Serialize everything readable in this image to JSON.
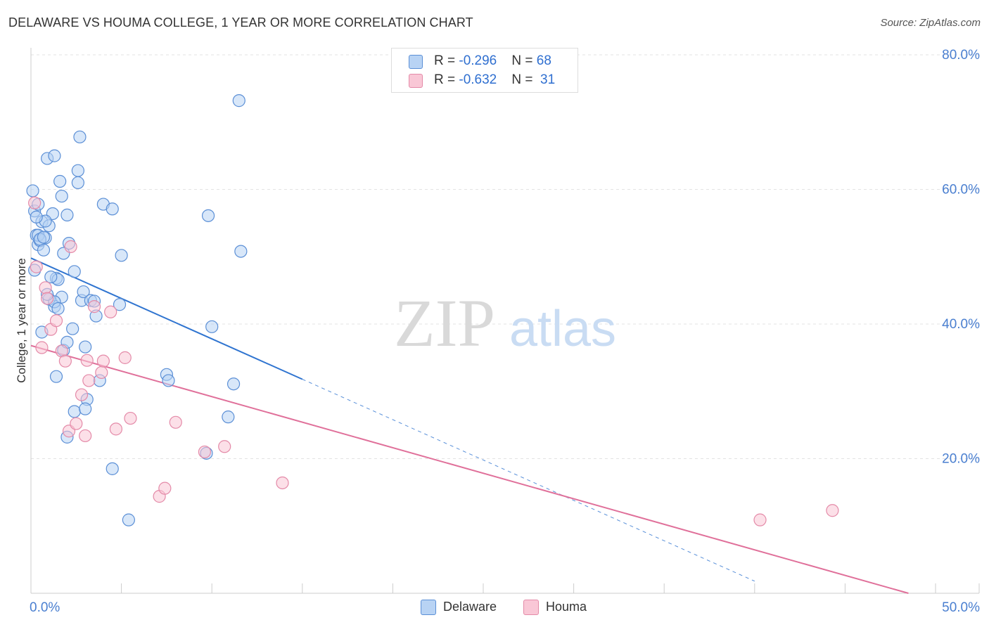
{
  "title": "DELAWARE VS HOUMA COLLEGE, 1 YEAR OR MORE CORRELATION CHART",
  "source": "Source: ZipAtlas.com",
  "watermark": {
    "zip": "ZIP",
    "atlas": "atlas"
  },
  "legend": {
    "rows": [
      {
        "r_label": "R = ",
        "r_value": "-0.296",
        "n_label": "N = ",
        "n_value": "68"
      },
      {
        "r_label": "R = ",
        "r_value": "-0.632",
        "n_label": "N = ",
        "n_value": " 31"
      }
    ]
  },
  "colors": {
    "delaware_fill": "#b8d3f4",
    "delaware_stroke": "#5b8fd6",
    "delaware_line": "#2f74d0",
    "houma_fill": "#f9c7d6",
    "houma_stroke": "#e48aa8",
    "houma_line": "#e0709a",
    "grid": "#e3e3e3",
    "tick_label": "#4a7fd0"
  },
  "chart_data": {
    "type": "scatter",
    "title": "DELAWARE VS HOUMA COLLEGE, 1 YEAR OR MORE CORRELATION CHART",
    "xlabel": "",
    "ylabel": "College, 1 year or more",
    "xlim": [
      0,
      50
    ],
    "ylim": [
      0,
      80
    ],
    "x_tick_labels": [
      "0.0%",
      "50.0%"
    ],
    "y_ticks": [
      20,
      40,
      60,
      80
    ],
    "y_tick_labels": [
      "20.0%",
      "40.0%",
      "60.0%",
      "80.0%"
    ],
    "legend_position": "bottom-center",
    "series": [
      {
        "name": "Delaware",
        "r": -0.296,
        "n": 68,
        "trend": {
          "x0": 0,
          "y0": 49.8,
          "x1": 15,
          "y1": 31.8,
          "dashed_to_x": 40
        },
        "points": [
          [
            0.1,
            59.8
          ],
          [
            0.2,
            56.8
          ],
          [
            0.4,
            57.8
          ],
          [
            0.3,
            53.2
          ],
          [
            0.4,
            51.8
          ],
          [
            0.5,
            52.4
          ],
          [
            0.6,
            55.2
          ],
          [
            0.7,
            51.0
          ],
          [
            0.8,
            52.8
          ],
          [
            0.9,
            64.6
          ],
          [
            1.0,
            54.6
          ],
          [
            1.2,
            56.4
          ],
          [
            1.3,
            42.6
          ],
          [
            1.4,
            46.8
          ],
          [
            1.6,
            61.2
          ],
          [
            1.7,
            59.0
          ],
          [
            2.0,
            56.2
          ],
          [
            2.1,
            52.0
          ],
          [
            2.3,
            39.3
          ],
          [
            2.4,
            47.8
          ],
          [
            2.6,
            62.8
          ],
          [
            2.7,
            67.8
          ],
          [
            2.8,
            43.5
          ],
          [
            2.9,
            44.8
          ],
          [
            3.0,
            36.6
          ],
          [
            3.1,
            28.8
          ],
          [
            3.3,
            43.5
          ],
          [
            3.5,
            43.4
          ],
          [
            3.6,
            41.2
          ],
          [
            3.8,
            31.6
          ],
          [
            4.0,
            57.8
          ],
          [
            4.5,
            57.1
          ],
          [
            4.9,
            42.9
          ],
          [
            5.0,
            50.2
          ],
          [
            7.5,
            32.5
          ],
          [
            7.6,
            31.6
          ],
          [
            9.7,
            20.8
          ],
          [
            9.8,
            56.1
          ],
          [
            10.0,
            39.6
          ],
          [
            10.9,
            26.2
          ],
          [
            11.2,
            31.1
          ],
          [
            11.5,
            73.2
          ],
          [
            11.6,
            50.8
          ],
          [
            0.2,
            48.0
          ],
          [
            0.6,
            38.8
          ],
          [
            1.0,
            43.7
          ],
          [
            1.5,
            46.6
          ],
          [
            1.7,
            44.0
          ],
          [
            2.4,
            27.0
          ],
          [
            2.0,
            23.2
          ],
          [
            1.4,
            32.2
          ],
          [
            1.8,
            36.1
          ],
          [
            3.0,
            27.4
          ],
          [
            4.5,
            18.5
          ],
          [
            5.4,
            10.9
          ],
          [
            1.1,
            47.0
          ],
          [
            0.8,
            55.3
          ],
          [
            1.8,
            50.5
          ],
          [
            1.3,
            43.3
          ],
          [
            2.0,
            37.3
          ],
          [
            1.3,
            65.0
          ],
          [
            2.6,
            61.0
          ],
          [
            0.3,
            55.9
          ],
          [
            0.4,
            53.2
          ],
          [
            0.9,
            44.4
          ],
          [
            1.5,
            42.3
          ],
          [
            0.5,
            52.6
          ],
          [
            0.7,
            52.9
          ]
        ]
      },
      {
        "name": "Houma",
        "r": -0.632,
        "n": 31,
        "trend": {
          "x0": 0,
          "y0": 36.8,
          "x1": 48.5,
          "y1": 0
        },
        "points": [
          [
            0.2,
            58.0
          ],
          [
            0.3,
            48.5
          ],
          [
            0.8,
            45.4
          ],
          [
            0.9,
            43.8
          ],
          [
            1.1,
            39.2
          ],
          [
            1.4,
            40.5
          ],
          [
            1.7,
            36.0
          ],
          [
            1.9,
            34.5
          ],
          [
            2.1,
            24.1
          ],
          [
            2.5,
            25.2
          ],
          [
            2.8,
            29.5
          ],
          [
            3.1,
            34.6
          ],
          [
            3.2,
            31.6
          ],
          [
            3.5,
            42.6
          ],
          [
            3.9,
            32.8
          ],
          [
            4.0,
            34.5
          ],
          [
            4.4,
            41.8
          ],
          [
            4.7,
            24.4
          ],
          [
            5.2,
            35.0
          ],
          [
            5.5,
            26.0
          ],
          [
            7.1,
            14.4
          ],
          [
            7.4,
            15.6
          ],
          [
            8.0,
            25.4
          ],
          [
            9.6,
            21.0
          ],
          [
            10.7,
            21.8
          ],
          [
            13.9,
            16.4
          ],
          [
            40.3,
            10.9
          ],
          [
            44.3,
            12.3
          ],
          [
            3.0,
            23.4
          ],
          [
            2.2,
            51.5
          ],
          [
            0.6,
            36.5
          ]
        ]
      }
    ]
  }
}
